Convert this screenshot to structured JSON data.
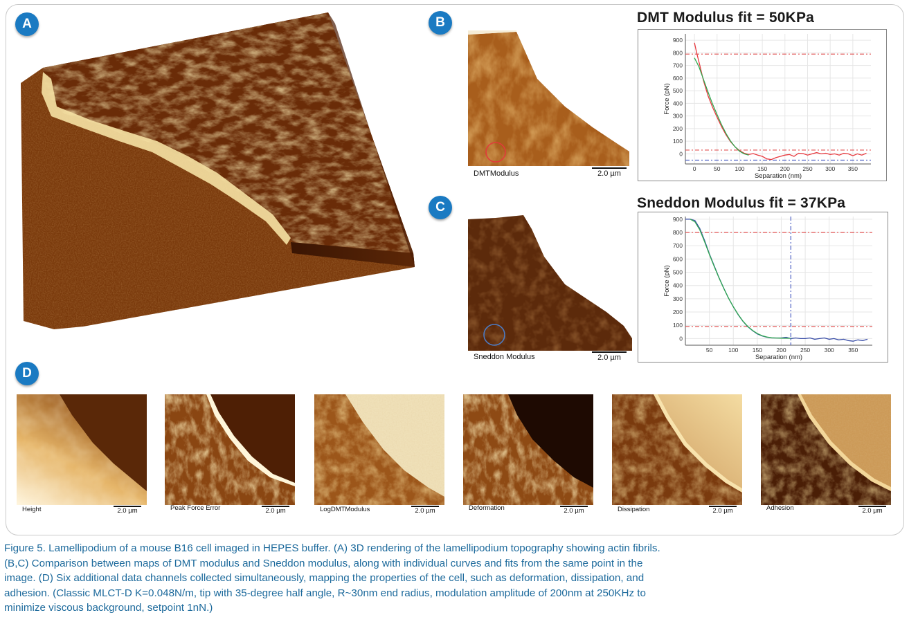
{
  "panels": {
    "a": {
      "badge": "A"
    },
    "b": {
      "badge": "B",
      "map_label": "DMTModulus",
      "scale_label": "2.0 µm",
      "chart_title": "DMT Modulus fit = 50KPa"
    },
    "c": {
      "badge": "C",
      "map_label": "Sneddon Modulus",
      "scale_label": "2.0 µm",
      "chart_title": "Sneddon Modulus fit = 37KPa"
    },
    "d": {
      "badge": "D",
      "thumbnails": [
        {
          "label": "Height",
          "scale": "2.0 µm"
        },
        {
          "label": "Peak Force Error",
          "scale": "2.0 µm"
        },
        {
          "label": "LogDMTModulus",
          "scale": "2.0 µm"
        },
        {
          "label": "Deformation",
          "scale": "2.0 µm"
        },
        {
          "label": "Dissipation",
          "scale": "2.0 µm"
        },
        {
          "label": "Adhesion",
          "scale": "2.0 µm"
        }
      ]
    }
  },
  "chart_data": [
    {
      "type": "line",
      "title": "DMT Modulus fit = 50KPa",
      "xlabel": "Separation (nm)",
      "ylabel": "Force (pN)",
      "xlim": [
        -20,
        390
      ],
      "ylim": [
        -80,
        950
      ],
      "xticks": [
        0,
        50,
        100,
        150,
        200,
        250,
        300,
        350
      ],
      "yticks": [
        0,
        100,
        200,
        300,
        400,
        500,
        600,
        700,
        800,
        900
      ],
      "reference_lines": {
        "horizontal": [
          790,
          30,
          -50
        ]
      },
      "series": [
        {
          "color": "#e8393f",
          "x": [
            0,
            5,
            12,
            20,
            30,
            40,
            50,
            60,
            70,
            80,
            90,
            100,
            110,
            120,
            130,
            140,
            150,
            160,
            170,
            180,
            190,
            200,
            210,
            220,
            230,
            240,
            250,
            260,
            270,
            280,
            290,
            300,
            310,
            320,
            330,
            340,
            350,
            360,
            370,
            380
          ],
          "y": [
            880,
            800,
            700,
            580,
            460,
            370,
            290,
            215,
            150,
            95,
            55,
            25,
            5,
            -5,
            2,
            -10,
            -20,
            -40,
            -45,
            -30,
            -20,
            -10,
            -5,
            -20,
            5,
            2,
            -10,
            0,
            10,
            0,
            5,
            -5,
            0,
            -10,
            5,
            0,
            -15,
            0,
            -10,
            5
          ]
        },
        {
          "color": "#2fa84f",
          "x": [
            0,
            10,
            20,
            30,
            40,
            50,
            60,
            70,
            80,
            90,
            100,
            110,
            120
          ],
          "y": [
            760,
            690,
            590,
            490,
            395,
            310,
            230,
            160,
            100,
            55,
            20,
            0,
            -10
          ]
        }
      ]
    },
    {
      "type": "line",
      "title": "Sneddon Modulus fit = 37KPa",
      "xlabel": "Separation (nm)",
      "ylabel": "Force (pN)",
      "xlim": [
        0,
        390
      ],
      "ylim": [
        -50,
        920
      ],
      "xticks": [
        50,
        100,
        150,
        200,
        250,
        300,
        350
      ],
      "yticks": [
        0,
        100,
        200,
        300,
        400,
        500,
        600,
        700,
        800,
        900
      ],
      "reference_lines": {
        "horizontal": [
          800,
          90
        ],
        "vertical": [
          220
        ]
      },
      "series": [
        {
          "color": "#3b4fa8",
          "x": [
            0,
            10,
            20,
            30,
            40,
            50,
            60,
            70,
            80,
            90,
            100,
            110,
            120,
            130,
            140,
            150,
            160,
            170,
            180,
            190,
            200,
            210,
            220,
            230,
            240,
            250,
            260,
            270,
            280,
            290,
            300,
            310,
            320,
            330,
            340,
            350,
            360,
            370,
            380
          ],
          "y": [
            900,
            900,
            890,
            830,
            740,
            640,
            550,
            460,
            380,
            305,
            240,
            180,
            130,
            90,
            60,
            35,
            20,
            10,
            5,
            5,
            5,
            10,
            0,
            5,
            0,
            0,
            5,
            -5,
            0,
            5,
            -5,
            0,
            -10,
            -5,
            -15,
            -20,
            -10,
            -15,
            -5
          ]
        },
        {
          "color": "#2fa84f",
          "x": [
            10,
            20,
            30,
            40,
            50,
            60,
            70,
            80,
            90,
            100,
            110,
            120,
            130,
            140,
            150,
            160,
            170,
            180,
            190,
            200,
            210,
            220
          ],
          "y": [
            900,
            880,
            820,
            730,
            635,
            545,
            458,
            378,
            305,
            240,
            182,
            132,
            92,
            62,
            38,
            22,
            12,
            6,
            4,
            3,
            2,
            2
          ]
        }
      ]
    }
  ],
  "caption": {
    "lines": [
      "Figure 5. Lamellipodium of a mouse B16 cell imaged in HEPES buffer. (A) 3D rendering of the lamellipodium topography showing actin fibrils.",
      "(B,C) Comparison between maps of DMT modulus and Sneddon modulus, along with individual curves and fits from the same point in the",
      "image. (D) Six additional data channels collected simultaneously, mapping the properties of the cell, such as deformation, dissipation, and",
      "adhesion. (Classic MLCT-D K=0.048N/m, tip with 35-degree half angle, R~30nm end radius, modulation amplitude of 200nm at 250KHz to",
      "minimize viscous background, setpoint 1nN.)"
    ]
  },
  "colors": {
    "badge": "#1a7ac2",
    "caption_text": "#1d6a9c",
    "afm_dark": "#4a1d05",
    "afm_mid": "#9a5214",
    "afm_light": "#f3dc9a",
    "dmt_curve": "#e8393f",
    "fit_curve": "#2fa84f",
    "sneddon_curve": "#3b4fa8"
  }
}
